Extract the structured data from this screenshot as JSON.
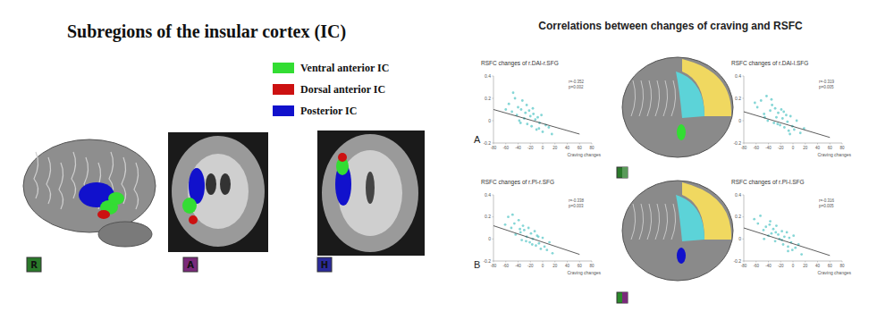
{
  "left_panel": {
    "title": "Subregions of the insular cortex (IC)",
    "legend": [
      {
        "label": "Ventral anterior IC",
        "color": "#33dd33"
      },
      {
        "label": "Dorsal anterior IC",
        "color": "#cc1111"
      },
      {
        "label": "Posterior IC",
        "color": "#1111cc"
      }
    ],
    "view_labels": [
      "R",
      "A",
      "H"
    ]
  },
  "right_panel": {
    "title": "Correlations between changes of craving and RSFC",
    "panel_labels": [
      "A",
      "B"
    ]
  },
  "chart_data": [
    {
      "type": "scatter",
      "title": "RSFC changes of r.DAI-r.SFG",
      "x_label": "Craving changes",
      "annotation": [
        "r=-0.352",
        "p=0.002"
      ],
      "xlim": [
        -80,
        80
      ],
      "xticks": [
        -80,
        -60,
        -40,
        -20,
        0,
        20,
        40,
        60,
        80
      ],
      "ylim": [
        -0.2,
        0.4
      ],
      "yticks": [
        -0.2,
        0,
        0.2,
        0.4
      ],
      "color": "#66cccc",
      "marker": "circle",
      "x": [
        -55,
        -50,
        -45,
        -42,
        -40,
        -38,
        -35,
        -33,
        -30,
        -28,
        -25,
        -22,
        -20,
        -18,
        -15,
        -12,
        -10,
        -8,
        -5,
        -2,
        0,
        5,
        10,
        15,
        -60,
        -48,
        -36,
        -26,
        -16,
        -6
      ],
      "values": [
        0.15,
        0.08,
        0.2,
        0.05,
        0.12,
        0.0,
        0.1,
        0.18,
        0.02,
        0.07,
        -0.03,
        0.09,
        0.04,
        -0.05,
        0.06,
        0.01,
        -0.08,
        0.03,
        -0.02,
        0.05,
        -0.1,
        -0.04,
        -0.06,
        -0.12,
        0.1,
        0.25,
        -0.02,
        0.14,
        0.11,
        -0.07
      ],
      "fit_line": {
        "x": [
          -80,
          60
        ],
        "values": [
          0.1,
          -0.12
        ]
      }
    },
    {
      "type": "scatter",
      "title": "RSFC changes of r.DAI-l.SFG",
      "x_label": "Craving changes",
      "annotation": [
        "r=-0.319",
        "p=0.005"
      ],
      "xlim": [
        -80,
        80
      ],
      "xticks": [
        -80,
        -60,
        -40,
        -20,
        0,
        20,
        40,
        60,
        80
      ],
      "ylim": [
        -0.2,
        0.4
      ],
      "yticks": [
        -0.2,
        0,
        0.2,
        0.4
      ],
      "color": "#66cccc",
      "marker": "circle",
      "x": [
        -58,
        -52,
        -47,
        -43,
        -41,
        -37,
        -34,
        -31,
        -29,
        -27,
        -24,
        -21,
        -19,
        -17,
        -14,
        -11,
        -9,
        -7,
        -4,
        -1,
        2,
        6,
        12,
        18,
        -62,
        -46,
        -35,
        -25,
        -15,
        -5
      ],
      "values": [
        0.12,
        0.18,
        0.06,
        0.22,
        0.0,
        0.09,
        0.14,
        -0.02,
        0.11,
        0.03,
        0.07,
        -0.04,
        0.1,
        0.02,
        -0.06,
        0.05,
        -0.01,
        -0.09,
        0.04,
        -0.05,
        -0.08,
        0.0,
        -0.11,
        -0.07,
        0.16,
        0.03,
        0.19,
        -0.03,
        0.08,
        -0.12
      ],
      "fit_line": {
        "x": [
          -80,
          60
        ],
        "values": [
          0.08,
          -0.15
        ]
      }
    },
    {
      "type": "scatter",
      "title": "RSFC changes of r.PI-r.SFG",
      "x_label": "Craving changes",
      "annotation": [
        "r=-0.338",
        "p=0.003"
      ],
      "xlim": [
        -80,
        80
      ],
      "xticks": [
        -80,
        -60,
        -40,
        -20,
        0,
        20,
        40,
        60,
        80
      ],
      "ylim": [
        -0.2,
        0.4
      ],
      "yticks": [
        -0.2,
        0,
        0.2,
        0.4
      ],
      "color": "#66cccc",
      "marker": "circle",
      "x": [
        -56,
        -51,
        -46,
        -44,
        -39,
        -36,
        -34,
        -32,
        -30,
        -26,
        -23,
        -21,
        -19,
        -16,
        -13,
        -11,
        -9,
        -6,
        -3,
        0,
        3,
        7,
        11,
        16,
        -61,
        -49,
        -37,
        -27,
        -17,
        -7
      ],
      "values": [
        0.2,
        0.1,
        0.14,
        0.04,
        0.17,
        0.06,
        -0.01,
        0.12,
        0.08,
        0.02,
        0.1,
        -0.03,
        0.05,
        0.0,
        0.07,
        -0.06,
        0.03,
        -0.04,
        -0.09,
        0.01,
        -0.07,
        -0.1,
        -0.03,
        -0.13,
        0.13,
        0.22,
        0.09,
        -0.02,
        -0.05,
        0.02
      ],
      "fit_line": {
        "x": [
          -80,
          60
        ],
        "values": [
          0.12,
          -0.14
        ]
      }
    },
    {
      "type": "scatter",
      "title": "RSFC changes of r.PI-l.SFG",
      "x_label": "Craving changes",
      "annotation": [
        "r=-0.316",
        "p=0.005"
      ],
      "xlim": [
        -80,
        80
      ],
      "xticks": [
        -80,
        -60,
        -40,
        -20,
        0,
        20,
        40,
        60,
        80
      ],
      "ylim": [
        -0.2,
        0.4
      ],
      "yticks": [
        -0.2,
        0,
        0.2,
        0.4
      ],
      "color": "#66cccc",
      "marker": "circle",
      "x": [
        -57,
        -53,
        -48,
        -44,
        -40,
        -37,
        -35,
        -32,
        -29,
        -27,
        -24,
        -22,
        -18,
        -16,
        -14,
        -10,
        -8,
        -6,
        -3,
        -1,
        1,
        4,
        9,
        14,
        -63,
        -47,
        -38,
        -28,
        -18,
        -8
      ],
      "values": [
        0.14,
        0.21,
        0.08,
        0.11,
        0.03,
        0.16,
        0.05,
        0.09,
        -0.02,
        0.12,
        0.04,
        0.0,
        0.07,
        -0.05,
        0.02,
        0.06,
        -0.07,
        0.01,
        -0.03,
        -0.1,
        0.03,
        -0.08,
        -0.05,
        -0.14,
        0.18,
        0.0,
        0.13,
        0.06,
        -0.01,
        -0.11
      ],
      "fit_line": {
        "x": [
          -80,
          60
        ],
        "values": [
          0.1,
          -0.15
        ]
      }
    }
  ]
}
